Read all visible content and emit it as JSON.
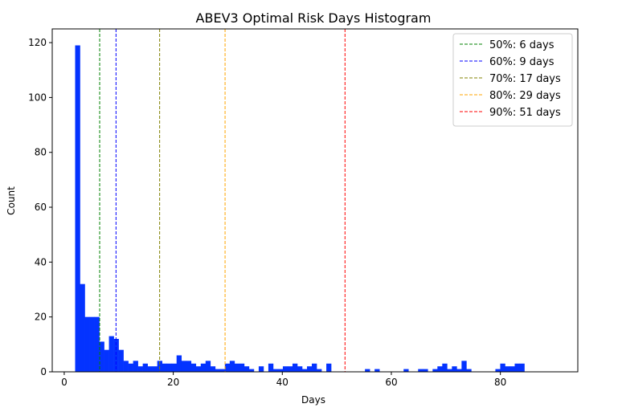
{
  "chart_data": {
    "type": "bar",
    "title": "ABEV3 Optimal Risk Days Histogram",
    "xlabel": "Days",
    "ylabel": "Count",
    "xlim": [
      -2.2,
      94.2
    ],
    "ylim": [
      0,
      125
    ],
    "xticks": [
      0,
      20,
      40,
      60,
      80
    ],
    "yticks": [
      0,
      20,
      40,
      60,
      80,
      100,
      120
    ],
    "bar_color": "#0433ff",
    "bins": {
      "start": 2,
      "width": 0.886,
      "counts": [
        119,
        32,
        20,
        20,
        20,
        11,
        8,
        13,
        12,
        8,
        4,
        3,
        4,
        2,
        3,
        2,
        2,
        4,
        3,
        3,
        3,
        6,
        4,
        4,
        3,
        2,
        3,
        4,
        2,
        1,
        1,
        3,
        4,
        3,
        3,
        2,
        1,
        0,
        2,
        0,
        3,
        1,
        1,
        2,
        2,
        3,
        2,
        1,
        2,
        3,
        1,
        0,
        3,
        0,
        0,
        0,
        0,
        0,
        0,
        0,
        1,
        0,
        1,
        0,
        0,
        0,
        0,
        0,
        1,
        0,
        0,
        1,
        1,
        0,
        1,
        2,
        3,
        1,
        2,
        1,
        4,
        1,
        0,
        0,
        0,
        0,
        0,
        1,
        3,
        2,
        2,
        3,
        3
      ]
    },
    "series": [
      {
        "name": "50%: 6 days",
        "x": 6.5,
        "color": "#008000"
      },
      {
        "name": "60%: 9 days",
        "x": 9.5,
        "color": "#0000ff"
      },
      {
        "name": "70%: 17 days",
        "x": 17.5,
        "color": "#808000"
      },
      {
        "name": "80%: 29 days",
        "x": 29.5,
        "color": "#ffa500"
      },
      {
        "name": "90%: 51 days",
        "x": 51.5,
        "color": "#ff0000"
      }
    ],
    "legend_position": "top-right",
    "grid": false
  }
}
